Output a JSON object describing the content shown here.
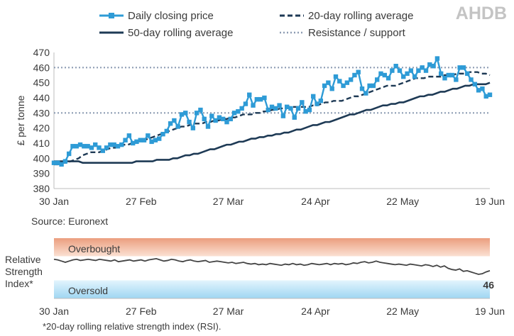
{
  "logo_text": "AHDB",
  "legend": {
    "daily": "Daily closing price",
    "ma20": "20-day rolling average",
    "ma50": "50-day rolling average",
    "resistance": "Resistance / support"
  },
  "source": "Source: Euronext",
  "footnote": "*20-day rolling relative strength index (RSI).",
  "rsi_panel": {
    "label_lines": [
      "Relative",
      "Strength",
      "Index*"
    ],
    "overbought": "Overbought",
    "oversold": "Oversold",
    "last_value": "46"
  },
  "colors": {
    "daily": "#2e9bd6",
    "ma20": "#1e3a55",
    "ma50": "#1e3a55",
    "resistance": "#8e9db4",
    "rsi": "#444444",
    "overbought_band": "#eb9e7e",
    "oversold_band": "#9fd6f2",
    "logo": "#c4c4c4"
  },
  "chart_data": [
    {
      "type": "line",
      "x_tick_labels": [
        "30 Jan",
        "27 Feb",
        "27 Mar",
        "24 Apr",
        "22 May",
        "19 Jun"
      ],
      "ylabel": "£ per tonne",
      "ylim": [
        380,
        470
      ],
      "yticks": [
        380,
        390,
        400,
        410,
        420,
        430,
        440,
        450,
        460,
        470
      ],
      "grid": false,
      "legend_position": "top",
      "x_range_trading_days": 100,
      "resistance_levels": [
        460,
        430
      ],
      "series": [
        {
          "name": "Daily closing price",
          "values": [
            397,
            397,
            396,
            398,
            403,
            408,
            408,
            409,
            408,
            408,
            407,
            409,
            407,
            405,
            407,
            409,
            409,
            408,
            409,
            412,
            415,
            410,
            411,
            412,
            412,
            415,
            411,
            412,
            413,
            416,
            418,
            423,
            425,
            421,
            429,
            430,
            424,
            420,
            430,
            432,
            426,
            421,
            428,
            425,
            427,
            426,
            424,
            426,
            430,
            431,
            433,
            436,
            442,
            435,
            439,
            439,
            440,
            432,
            434,
            433,
            435,
            428,
            434,
            433,
            427,
            433,
            437,
            431,
            432,
            441,
            436,
            438,
            448,
            450,
            446,
            454,
            451,
            448,
            450,
            452,
            455,
            457,
            446,
            443,
            448,
            448,
            452,
            456,
            455,
            453,
            458,
            461,
            458,
            454,
            456,
            458,
            454,
            458,
            460,
            458,
            462,
            461,
            466,
            456,
            453,
            455,
            455,
            452,
            460,
            460,
            456,
            452,
            449,
            445,
            446,
            441,
            442
          ]
        },
        {
          "name": "20-day rolling average",
          "values": [
            396,
            396,
            397,
            397,
            398,
            399,
            400,
            402,
            403,
            404,
            404,
            404,
            405,
            406,
            407,
            407,
            408,
            409,
            409,
            410,
            411,
            412,
            412,
            413,
            414,
            415,
            416,
            417,
            418,
            419,
            420,
            421,
            421,
            422,
            423,
            423,
            423,
            424,
            424,
            425,
            425,
            426,
            426,
            427,
            427,
            428,
            429,
            429,
            429,
            430,
            430,
            431,
            431,
            432,
            432,
            433,
            433,
            434,
            434,
            434,
            434,
            434,
            434,
            435,
            435,
            436,
            437,
            437,
            438,
            438,
            438,
            439,
            440,
            441,
            441,
            442,
            443,
            444,
            445,
            446,
            447,
            448,
            448,
            448,
            449,
            450,
            451,
            452,
            453,
            453,
            453,
            454,
            454,
            454,
            454,
            455,
            455,
            455,
            456,
            456,
            456,
            457,
            457,
            457,
            456,
            456,
            455
          ]
        },
        {
          "name": "50-day rolling average",
          "values": [
            398,
            398,
            398,
            398,
            398,
            398,
            398,
            397,
            397,
            397,
            397,
            397,
            397,
            397,
            397,
            397,
            397,
            397,
            397,
            397,
            398,
            398,
            398,
            398,
            398,
            399,
            399,
            399,
            399,
            400,
            400,
            401,
            402,
            402,
            403,
            403,
            404,
            405,
            406,
            406,
            407,
            408,
            409,
            409,
            410,
            411,
            411,
            412,
            413,
            413,
            414,
            414,
            415,
            415,
            416,
            416,
            417,
            417,
            418,
            419,
            419,
            420,
            421,
            422,
            422,
            423,
            424,
            424,
            425,
            426,
            427,
            428,
            429,
            429,
            430,
            431,
            432,
            432,
            433,
            434,
            435,
            435,
            436,
            436,
            437,
            437,
            438,
            439,
            440,
            441,
            441,
            442,
            442,
            443,
            444,
            444,
            445,
            446,
            446,
            447,
            448,
            448,
            449,
            449,
            449,
            449,
            450
          ]
        }
      ]
    },
    {
      "type": "line",
      "title": "Relative Strength Index*",
      "x_tick_labels": [
        "30 Jan",
        "27 Feb",
        "27 Mar",
        "24 Apr",
        "22 May",
        "19 Jun"
      ],
      "ylim": [
        0,
        100
      ],
      "bands": [
        {
          "label": "Overbought",
          "from": 70,
          "to": 100
        },
        {
          "label": "Oversold",
          "from": 0,
          "to": 30
        }
      ],
      "last_value_label": "46",
      "series": [
        {
          "name": "RSI",
          "values": [
            65,
            64,
            62,
            60,
            62,
            64,
            65,
            63,
            64,
            65,
            64,
            63,
            65,
            64,
            63,
            62,
            64,
            61,
            62,
            63,
            64,
            62,
            63,
            64,
            62,
            64,
            65,
            66,
            64,
            62,
            63,
            65,
            64,
            62,
            61,
            63,
            64,
            62,
            61,
            62,
            63,
            60,
            61,
            62,
            61,
            60,
            59,
            60,
            58,
            59,
            60,
            58,
            57,
            58,
            56,
            57,
            56,
            58,
            57,
            56,
            55,
            57,
            56,
            58,
            56,
            57,
            55,
            56,
            58,
            57,
            56,
            57,
            58,
            56,
            58,
            57,
            58,
            56,
            57,
            59,
            58,
            60,
            61,
            59,
            60,
            62,
            60,
            59,
            58,
            57,
            56,
            57,
            56,
            55,
            57,
            56,
            55,
            54,
            56,
            55,
            53,
            55,
            52,
            54,
            50,
            48,
            47,
            49,
            45,
            46,
            44,
            42,
            40,
            41,
            44,
            46
          ]
        }
      ]
    }
  ]
}
